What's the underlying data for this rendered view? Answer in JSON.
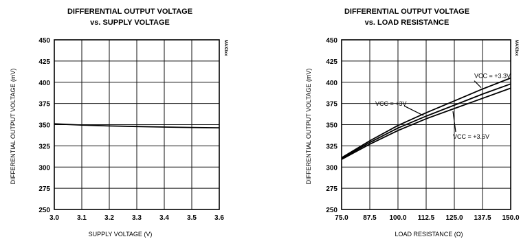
{
  "chart_data": [
    {
      "type": "line",
      "title": "DIFFERENTIAL OUTPUT VOLTAGE",
      "subtitle": "vs. SUPPLY VOLTAGE",
      "xlabel": "SUPPLY VOLTAGE (V)",
      "ylabel": "DIFFERENTIAL OUTPUT VOLTAGE (mV)",
      "side_label": "MAX3xx",
      "xlim": [
        3.0,
        3.6
      ],
      "ylim": [
        250,
        450
      ],
      "x_ticks": [
        3.0,
        3.1,
        3.2,
        3.3,
        3.4,
        3.5,
        3.6
      ],
      "x_tick_labels": [
        "3.0",
        "3.1",
        "3.2",
        "3.3",
        "3.4",
        "3.5",
        "3.6"
      ],
      "y_ticks": [
        250,
        275,
        300,
        325,
        350,
        375,
        400,
        425,
        450
      ],
      "y_tick_labels": [
        "250",
        "275",
        "300",
        "325",
        "350",
        "375",
        "400",
        "425",
        "450"
      ],
      "grid": true,
      "series": [
        {
          "x": [
            3.0,
            3.1,
            3.2,
            3.3,
            3.4,
            3.5,
            3.6
          ],
          "values": [
            351,
            349.5,
            348.5,
            347.8,
            347.2,
            346.7,
            346.3
          ]
        }
      ],
      "annotations": []
    },
    {
      "type": "line",
      "title": "DIFFERENTIAL OUTPUT VOLTAGE",
      "subtitle": "vs. LOAD RESISTANCE",
      "xlabel": "LOAD RESISTANCE (Ω)",
      "ylabel": "DIFFERENTIAL OUTPUT VOLTAGE (mV)",
      "side_label": "MAX3xx",
      "xlim": [
        75.0,
        150.0
      ],
      "ylim": [
        250,
        450
      ],
      "x_ticks": [
        75.0,
        87.5,
        100.0,
        112.5,
        125.0,
        137.5,
        150.0
      ],
      "x_tick_labels": [
        "75.0",
        "87.5",
        "100.0",
        "112.5",
        "125.0",
        "137.5",
        "150.0"
      ],
      "y_ticks": [
        250,
        275,
        300,
        325,
        350,
        375,
        400,
        425,
        450
      ],
      "y_tick_labels": [
        "250",
        "275",
        "300",
        "325",
        "350",
        "375",
        "400",
        "425",
        "450"
      ],
      "grid": true,
      "series": [
        {
          "name": "VCC = +3.3V",
          "x": [
            75,
            87.5,
            100,
            112.5,
            125,
            137.5,
            150
          ],
          "values": [
            311,
            331,
            349,
            364,
            378,
            392,
            405
          ]
        },
        {
          "name": "VCC = +3V",
          "x": [
            75,
            87.5,
            100,
            112.5,
            125,
            137.5,
            150
          ],
          "values": [
            310,
            329,
            346,
            360,
            373,
            386,
            398
          ]
        },
        {
          "name": "VCC = +3.6V",
          "x": [
            75,
            87.5,
            100,
            112.5,
            125,
            137.5,
            150
          ],
          "values": [
            309,
            327,
            343,
            357,
            369,
            381,
            393
          ]
        }
      ],
      "annotations": [
        {
          "label": "VCC = +3.3V",
          "at": [
            137.5,
            392
          ]
        },
        {
          "label": "VCC = +3V",
          "at": [
            112.5,
            364
          ]
        },
        {
          "label": "VCC = +3.6V",
          "at": [
            125,
            369
          ]
        }
      ]
    }
  ]
}
